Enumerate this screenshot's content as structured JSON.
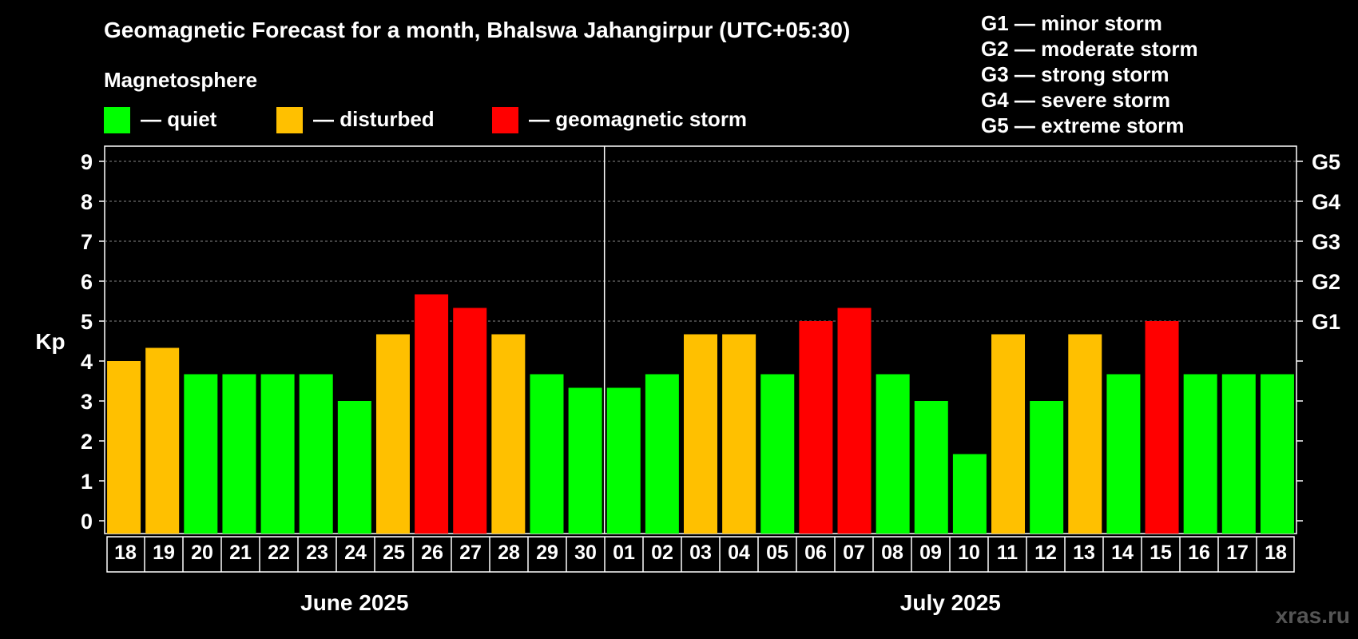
{
  "header": {
    "title": "Geomagnetic Forecast for a month, Bhalswa Jahangirpur (UTC+05:30)",
    "legend_heading": "Magnetosphere",
    "legend": [
      {
        "label": "— quiet",
        "color": "#00ff00"
      },
      {
        "label": "— disturbed",
        "color": "#ffc000"
      },
      {
        "label": "— geomagnetic storm",
        "color": "#ff0000"
      }
    ],
    "storm_scale": [
      "G1 — minor storm",
      "G2 — moderate storm",
      "G3 — strong storm",
      "G4 — severe storm",
      "G5 — extreme storm"
    ],
    "watermark": "xras.ru"
  },
  "chart_data": {
    "type": "bar",
    "title": "Geomagnetic Forecast for a month, Bhalswa Jahangirpur (UTC+05:30)",
    "ylabel": "Kp",
    "ylim": [
      0,
      9
    ],
    "yticks": [
      "0",
      "1",
      "2",
      "3",
      "4",
      "5",
      "6",
      "7",
      "8",
      "9"
    ],
    "right_axis_labels": [
      {
        "kp": 5,
        "label": "G1"
      },
      {
        "kp": 6,
        "label": "G2"
      },
      {
        "kp": 7,
        "label": "G3"
      },
      {
        "kp": 8,
        "label": "G4"
      },
      {
        "kp": 9,
        "label": "G5"
      }
    ],
    "categories": [
      "18",
      "19",
      "20",
      "21",
      "22",
      "23",
      "24",
      "25",
      "26",
      "27",
      "28",
      "29",
      "30",
      "01",
      "02",
      "03",
      "04",
      "05",
      "06",
      "07",
      "08",
      "09",
      "10",
      "11",
      "12",
      "13",
      "14",
      "15",
      "16",
      "17",
      "18"
    ],
    "values": [
      4.0,
      4.33,
      3.67,
      3.67,
      3.67,
      3.67,
      3.0,
      4.67,
      5.67,
      5.33,
      4.67,
      3.67,
      3.33,
      3.33,
      3.67,
      4.67,
      4.67,
      3.67,
      5.0,
      5.33,
      3.67,
      3.0,
      1.67,
      4.67,
      3.0,
      4.67,
      3.67,
      5.0,
      3.67,
      3.67,
      3.67
    ],
    "status": [
      "disturbed",
      "disturbed",
      "quiet",
      "quiet",
      "quiet",
      "quiet",
      "quiet",
      "disturbed",
      "storm",
      "storm",
      "disturbed",
      "quiet",
      "quiet",
      "quiet",
      "quiet",
      "disturbed",
      "disturbed",
      "quiet",
      "storm",
      "storm",
      "quiet",
      "quiet",
      "quiet",
      "disturbed",
      "quiet",
      "disturbed",
      "quiet",
      "storm",
      "quiet",
      "quiet",
      "quiet"
    ],
    "colors": {
      "quiet": "#00ff00",
      "disturbed": "#ffc000",
      "storm": "#ff0000"
    },
    "months": [
      {
        "label": "June 2025",
        "count": 13
      },
      {
        "label": "July 2025",
        "count": 18
      }
    ],
    "grid": true
  }
}
